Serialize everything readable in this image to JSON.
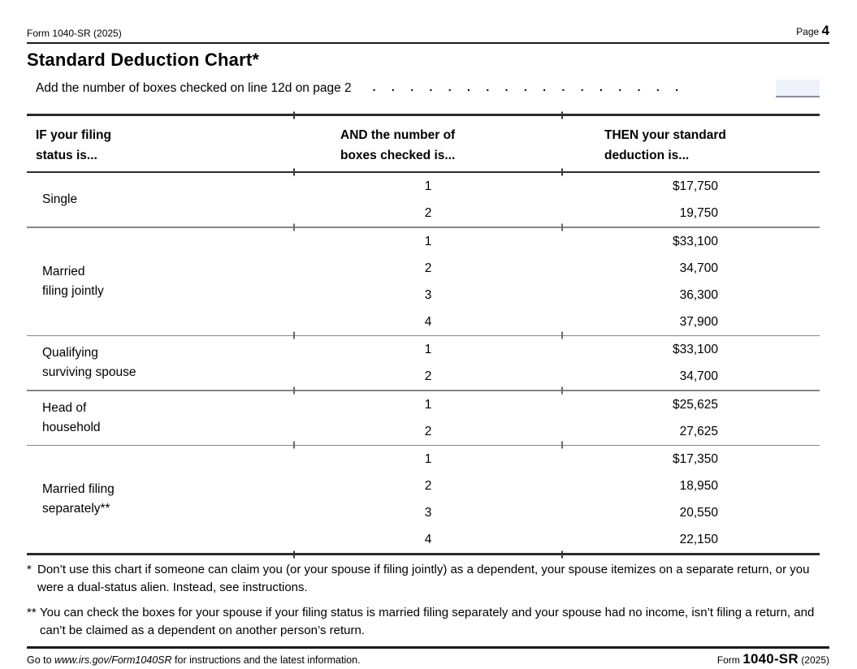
{
  "header": {
    "form_id": "Form 1040-SR (2025)",
    "page_label": "Page",
    "page_number": "4"
  },
  "title": "Standard Deduction Chart*",
  "add_line": {
    "text": "Add the number of boxes checked on line 12d on page 2",
    "dot_leader": ". . . . . . . . . . . . . . . . .",
    "input_value": ""
  },
  "table": {
    "headers": {
      "col1_line1": "IF your filing",
      "col1_line2": "status is...",
      "col2_line1": "AND the number of",
      "col2_line2": "boxes checked is...",
      "col3_line1": "THEN your standard",
      "col3_line2": "deduction is..."
    },
    "groups": [
      {
        "label_line1": "Single",
        "rows": [
          {
            "boxes": "1",
            "amount": "$17,750"
          },
          {
            "boxes": "2",
            "amount": "19,750"
          }
        ]
      },
      {
        "label_line1": "Married",
        "label_line2": "filing jointly",
        "rows": [
          {
            "boxes": "1",
            "amount": "$33,100"
          },
          {
            "boxes": "2",
            "amount": "34,700"
          },
          {
            "boxes": "3",
            "amount": "36,300"
          },
          {
            "boxes": "4",
            "amount": "37,900"
          }
        ]
      },
      {
        "label_line1": "Qualifying",
        "label_line2": "surviving spouse",
        "rows": [
          {
            "boxes": "1",
            "amount": "$33,100"
          },
          {
            "boxes": "2",
            "amount": "34,700"
          }
        ]
      },
      {
        "label_line1": "Head of",
        "label_line2": "household",
        "rows": [
          {
            "boxes": "1",
            "amount": "$25,625"
          },
          {
            "boxes": "2",
            "amount": "27,625"
          }
        ]
      },
      {
        "label_line1": "Married filing",
        "label_line2": "separately**",
        "rows": [
          {
            "boxes": "1",
            "amount": "$17,350"
          },
          {
            "boxes": "2",
            "amount": "18,950"
          },
          {
            "boxes": "3",
            "amount": "20,550"
          },
          {
            "boxes": "4",
            "amount": "22,150"
          }
        ]
      }
    ]
  },
  "footnotes": [
    {
      "marker": "*",
      "text": "Don’t use this chart if someone can claim you (or your spouse if filing jointly) as a dependent, your spouse itemizes on a separate return, or you were a dual-status alien. Instead, see instructions."
    },
    {
      "marker": "**",
      "text": "You can check the boxes for your spouse if your filing status is married filing separately and your spouse had no income, isn’t filing a return, and can’t be claimed as a dependent on another person’s return."
    }
  ],
  "footer": {
    "goto_prefix": "Go to ",
    "url": "www.irs.gov/Form1040SR",
    "goto_suffix": " for instructions and the latest information.",
    "form_word": "Form",
    "form_number": "1040-SR",
    "form_year": "(2025)"
  },
  "colors": {
    "entry_box_fill": "#eef2fb",
    "entry_box_underline": "#8d8d9c",
    "rule_dark": "#2b2b2b",
    "rule_gray": "#858585"
  }
}
